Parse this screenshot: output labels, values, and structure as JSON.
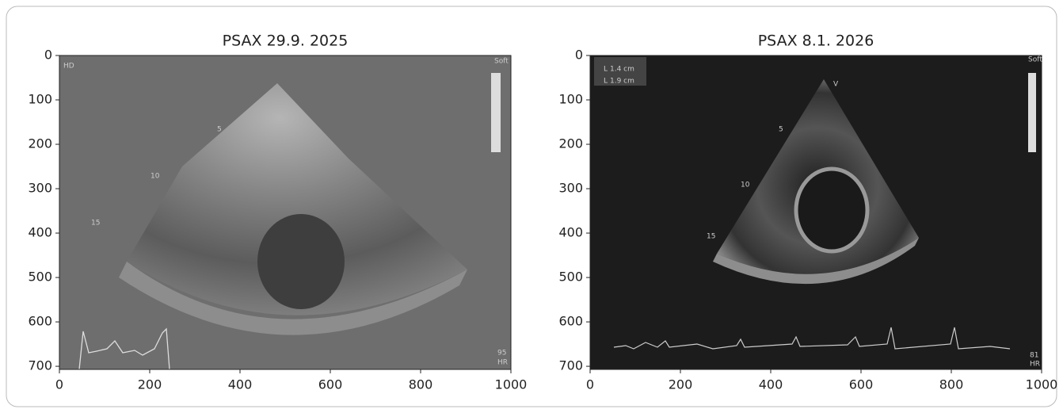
{
  "chart_data": [
    {
      "type": "image",
      "title": "PSAX 29.9. 2025",
      "xlim": [
        0,
        1000
      ],
      "ylim": [
        707,
        0
      ],
      "xticks": [
        0,
        200,
        400,
        600,
        800,
        1000
      ],
      "yticks": [
        0,
        100,
        200,
        300,
        400,
        500,
        600,
        700
      ],
      "annotations": [
        "HD",
        "Soft",
        "5",
        "10",
        "15",
        "95",
        "HR"
      ]
    },
    {
      "type": "image",
      "title": "PSAX 8.1. 2026",
      "xlim": [
        0,
        1000
      ],
      "ylim": [
        707,
        0
      ],
      "xticks": [
        0,
        200,
        400,
        600,
        800,
        1000
      ],
      "yticks": [
        0,
        100,
        200,
        300,
        400,
        500,
        600,
        700
      ],
      "annotations": [
        "L",
        "1.4 cm",
        "L",
        "1.9 cm",
        "Soft",
        "V",
        "5",
        "10",
        "15",
        "81",
        "HR"
      ]
    }
  ]
}
